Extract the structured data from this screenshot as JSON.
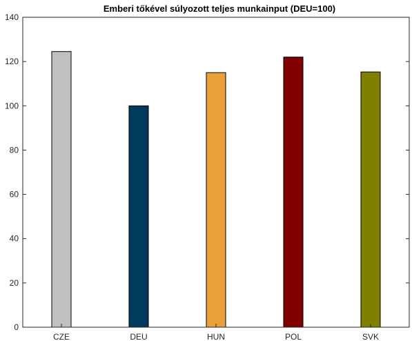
{
  "chart_data": {
    "type": "bar",
    "title": "Emberi tőkével súlyozott teljes munkainput (DEU=100)",
    "xlabel": "",
    "ylabel": "",
    "categories": [
      "CZE",
      "DEU",
      "HUN",
      "POL",
      "SVK"
    ],
    "values": [
      124.5,
      100,
      115,
      122,
      115.3
    ],
    "colors": [
      "#c0c0c0",
      "#003a5d",
      "#e8a03a",
      "#800000",
      "#808000"
    ],
    "ylim": [
      0,
      140
    ],
    "yticks": [
      0,
      20,
      40,
      60,
      80,
      100,
      120,
      140
    ],
    "grid": false,
    "legend": "none"
  }
}
